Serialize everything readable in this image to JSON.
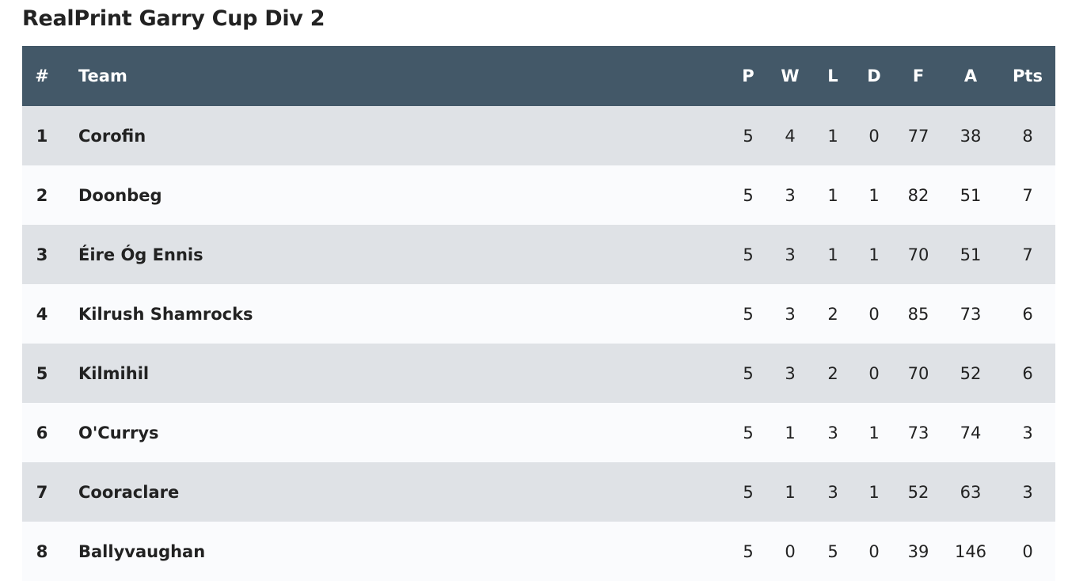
{
  "header": {
    "title": "RealPrint Garry Cup Div 2"
  },
  "table": {
    "columns": [
      "#",
      "Team",
      "P",
      "W",
      "L",
      "D",
      "F",
      "A",
      "Pts"
    ],
    "rows": [
      [
        1,
        "Corofin",
        5,
        4,
        1,
        0,
        77,
        38,
        8
      ],
      [
        2,
        "Doonbeg",
        5,
        3,
        1,
        1,
        82,
        51,
        7
      ],
      [
        3,
        "Éire Óg Ennis",
        5,
        3,
        1,
        1,
        70,
        51,
        7
      ],
      [
        4,
        "Kilrush Shamrocks",
        5,
        3,
        2,
        0,
        85,
        73,
        6
      ],
      [
        5,
        "Kilmihil",
        5,
        3,
        2,
        0,
        70,
        52,
        6
      ],
      [
        6,
        "O'Currys",
        5,
        1,
        3,
        1,
        73,
        74,
        3
      ],
      [
        7,
        "Cooraclare",
        5,
        1,
        3,
        1,
        52,
        63,
        3
      ],
      [
        8,
        "Ballyvaughan",
        5,
        0,
        5,
        0,
        39,
        146,
        0
      ]
    ]
  }
}
